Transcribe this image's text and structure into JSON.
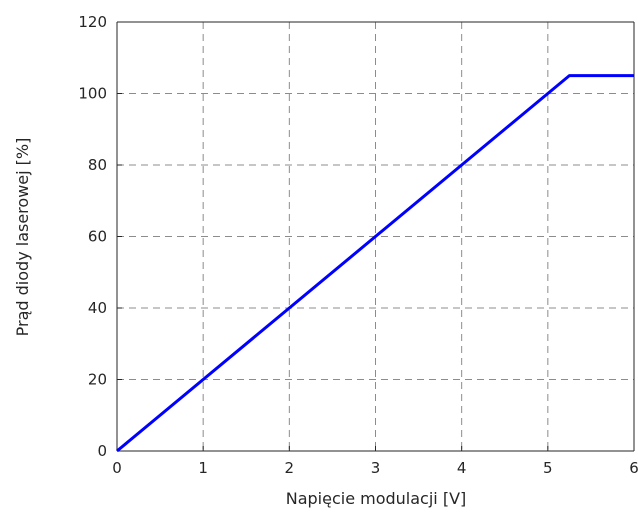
{
  "chart_data": {
    "type": "line",
    "title": "",
    "xlabel": "Napięcie modulacji [V]",
    "ylabel": "Prąd diody laserowej [%]",
    "xlim": [
      0,
      6
    ],
    "ylim": [
      0,
      120
    ],
    "x_ticks": [
      0,
      1,
      2,
      3,
      4,
      5,
      6
    ],
    "y_ticks": [
      0,
      20,
      40,
      60,
      80,
      100,
      120
    ],
    "grid": true,
    "grid_style": "dashed",
    "series": [
      {
        "x": [
          0,
          5.25,
          6
        ],
        "y": [
          0,
          105,
          105
        ],
        "color": "#0000ff"
      }
    ]
  }
}
